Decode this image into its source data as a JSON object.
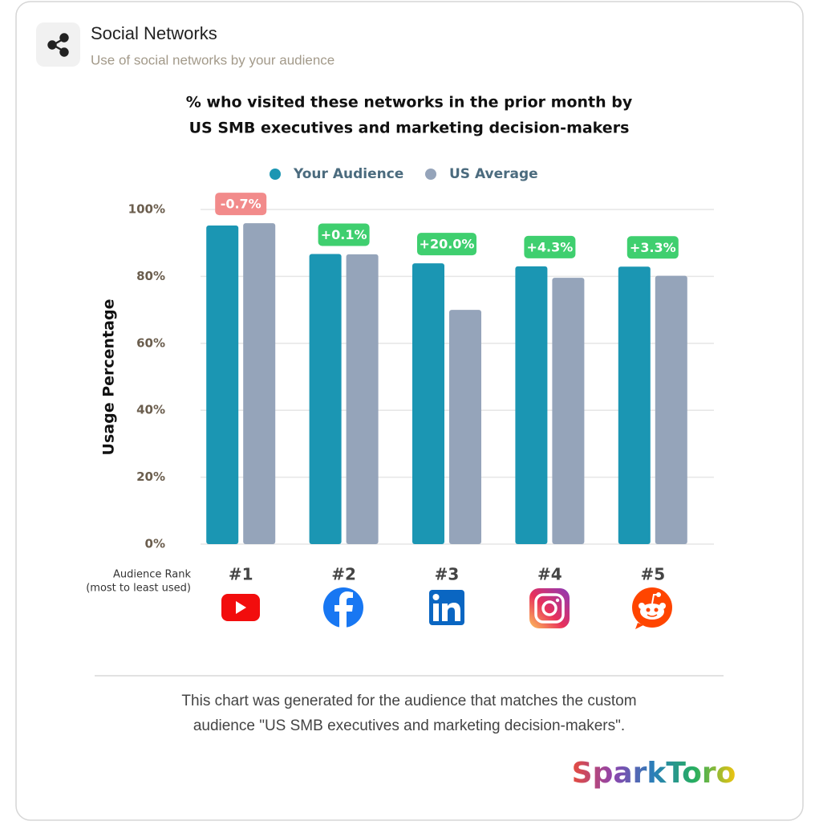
{
  "header": {
    "title": "Social Networks",
    "subtitle": "Use of social networks by your audience"
  },
  "chart_data": {
    "type": "bar",
    "title_lines": [
      "% who visited these networks in the prior month by",
      "US SMB executives and marketing decision-makers"
    ],
    "y_label": "Usage Percentage",
    "categories": [
      "#1",
      "#2",
      "#3",
      "#4",
      "#5"
    ],
    "series": [
      {
        "name": "Your Audience",
        "color": "#1b96b3",
        "values": [
          95.2,
          86.7,
          83.9,
          83.0,
          82.9
        ]
      },
      {
        "name": "US Average",
        "color": "#95a4ba",
        "values": [
          95.9,
          86.6,
          70.0,
          79.6,
          80.2
        ]
      }
    ],
    "change_labels": [
      "-0.7%",
      "+0.1%",
      "+20.0%",
      "+4.3%",
      "+3.3%"
    ],
    "change_colors": [
      "#f28b8b",
      "#3fcf6f",
      "#3fcf6f",
      "#3fcf6f",
      "#3fcf6f"
    ],
    "ylim": [
      0,
      100
    ],
    "yticks": [
      {
        "value": 0,
        "label": "0%"
      },
      {
        "value": 20,
        "label": "20%"
      },
      {
        "value": 40,
        "label": "40%"
      },
      {
        "value": 60,
        "label": "60%"
      },
      {
        "value": 80,
        "label": "80%"
      },
      {
        "value": 100,
        "label": "100%"
      }
    ],
    "grid": true,
    "legend": "top",
    "rank_label": [
      "Audience Rank",
      "(most to least used)"
    ]
  },
  "footer": {
    "note_lines": [
      "This chart was generated for the audience that matches the custom",
      "audience \"US SMB executives and marketing decision-makers\"."
    ],
    "brand": "SparkToro"
  }
}
